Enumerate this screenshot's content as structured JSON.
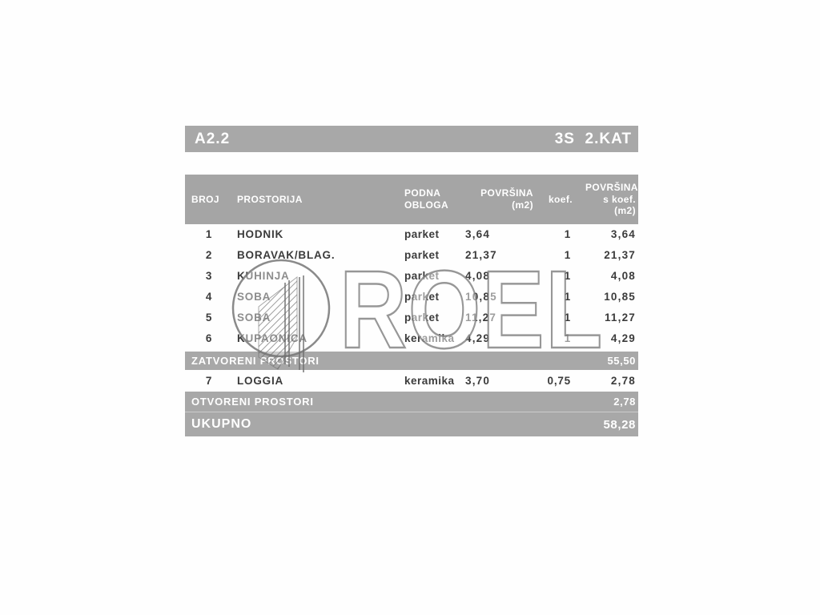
{
  "header_bar": {
    "unit_label": "A2.2",
    "floor_label": "3S  2.KAT"
  },
  "table": {
    "columns": {
      "broj": "BROJ",
      "prostorija": "PROSTORIJA",
      "obloga": "PODNA\nOBLOGA",
      "povrsina": "POVRŠINA\n(m2)",
      "koef": "koef.",
      "povrsina_koef": "POVRŠINA\ns koef.\n(m2)"
    },
    "body": [
      {
        "kind": "room",
        "broj": "1",
        "prostorija": "HODNIK",
        "obloga": "parket",
        "povrsina": "3,64",
        "koef": "1",
        "povrsina_koef": "3,64"
      },
      {
        "kind": "room",
        "broj": "2",
        "prostorija": "BORAVAK/BLAG.",
        "obloga": "parket",
        "povrsina": "21,37",
        "koef": "1",
        "povrsina_koef": "21,37"
      },
      {
        "kind": "room",
        "broj": "3",
        "prostorija": "KUHINJA",
        "obloga": "parket",
        "povrsina": "4,08",
        "koef": "1",
        "povrsina_koef": "4,08"
      },
      {
        "kind": "room",
        "broj": "4",
        "prostorija": "SOBA",
        "obloga": "parket",
        "povrsina": "10,85",
        "koef": "1",
        "povrsina_koef": "10,85"
      },
      {
        "kind": "room",
        "broj": "5",
        "prostorija": "SOBA",
        "obloga": "parket",
        "povrsina": "11,27",
        "koef": "1",
        "povrsina_koef": "11,27"
      },
      {
        "kind": "room",
        "broj": "6",
        "prostorija": "KUPAONICA",
        "obloga": "keramika",
        "povrsina": "4,29",
        "koef": "1",
        "povrsina_koef": "4,29"
      },
      {
        "kind": "summary",
        "style": "zatvoreni",
        "label": "ZATVORENI PROSTORI",
        "value": "55,50"
      },
      {
        "kind": "room",
        "open": true,
        "broj": "7",
        "prostorija": "LOGGIA",
        "obloga": "keramika",
        "povrsina": "3,70",
        "koef": "0,75",
        "povrsina_koef": "2,78"
      },
      {
        "kind": "summary",
        "style": "otvoreni",
        "label": "OTVORENI PROSTORI",
        "value": "2,78"
      },
      {
        "kind": "summary",
        "style": "total",
        "label": "UKUPNO",
        "value": "58,28"
      }
    ]
  },
  "watermark": {
    "text": "ROEL",
    "logo": "roel-building-logo"
  },
  "colors": {
    "bar_gray": "#a8a8a8",
    "header_gray": "#a5a5a5",
    "text_dark": "#3b3b3b",
    "bar_text": "#ffffff",
    "watermark_gray": "#7d7d7d"
  }
}
